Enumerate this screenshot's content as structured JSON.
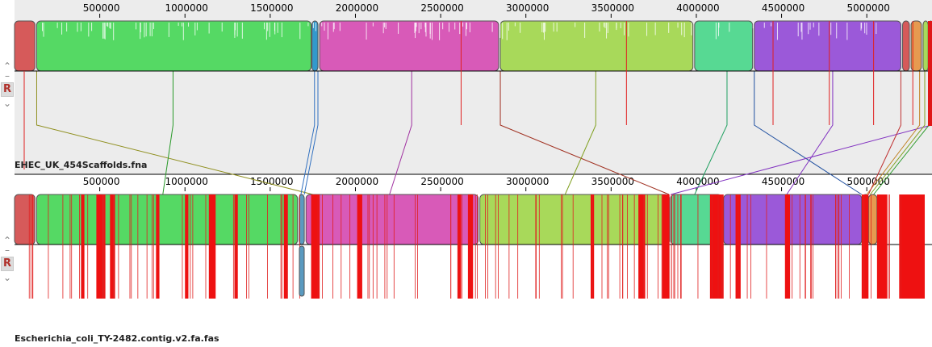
{
  "genome_length": 5400000,
  "genomes": [
    {
      "name": "EHEC_UK_454Scaffolds.fna",
      "tick_labels": [
        "500000",
        "1000000",
        "1500000",
        "2000000",
        "2500000",
        "3000000",
        "3500000",
        "4000000",
        "4500000",
        "5000000"
      ],
      "blocks": [
        {
          "start": 0,
          "end": 120000,
          "color": "#d65a5a"
        },
        {
          "start": 130000,
          "end": 1740000,
          "color": "#55d964"
        },
        {
          "start": 1745000,
          "end": 1780000,
          "color": "#3399cc"
        },
        {
          "start": 1790000,
          "end": 2840000,
          "color": "#d85ab8"
        },
        {
          "start": 2850000,
          "end": 3980000,
          "color": "#a8d95a"
        },
        {
          "start": 3990000,
          "end": 4330000,
          "color": "#57d993"
        },
        {
          "start": 4340000,
          "end": 5200000,
          "color": "#9b59d9"
        },
        {
          "start": 5210000,
          "end": 5250000,
          "color": "#d65a5a"
        },
        {
          "start": 5260000,
          "end": 5320000,
          "color": "#e69a50"
        },
        {
          "start": 5330000,
          "end": 5360000,
          "color": "#a8d95a"
        },
        {
          "start": 5365000,
          "end": 5385000,
          "color": "#55d964"
        }
      ],
      "markers": [
        2620000,
        3590000,
        4450000,
        4780000,
        5040000,
        5270000
      ]
    },
    {
      "name": "Escherichia_coli_TY-2482.contig.v2.fa.fas",
      "tick_labels": [
        "500000",
        "1000000",
        "1500000",
        "2000000",
        "2500000",
        "3000000",
        "3500000",
        "4000000",
        "4500000",
        "5000000"
      ],
      "blocks": [
        {
          "start": 0,
          "end": 120000,
          "color": "#d65a5a"
        },
        {
          "start": 130000,
          "end": 1660000,
          "color": "#55d964"
        },
        {
          "start": 1670000,
          "end": 1700000,
          "color": "#5a9ac0"
        },
        {
          "start": 1710000,
          "end": 2720000,
          "color": "#d85ab8"
        },
        {
          "start": 2730000,
          "end": 3840000,
          "color": "#a8d95a"
        },
        {
          "start": 3850000,
          "end": 4150000,
          "color": "#57d993"
        },
        {
          "start": 4160000,
          "end": 4970000,
          "color": "#9b59d9"
        },
        {
          "start": 4975000,
          "end": 5010000,
          "color": "#d65a5a"
        },
        {
          "start": 5010000,
          "end": 5060000,
          "color": "#e69a50"
        }
      ],
      "red_regions": [
        [
          390000,
          410000
        ],
        [
          480000,
          530000
        ],
        [
          560000,
          590000
        ],
        [
          830000,
          850000
        ],
        [
          1000000,
          1020000
        ],
        [
          1140000,
          1180000
        ],
        [
          1290000,
          1310000
        ],
        [
          1580000,
          1600000
        ],
        [
          1740000,
          1790000
        ],
        [
          2010000,
          2040000
        ],
        [
          2600000,
          2620000
        ],
        [
          2660000,
          2690000
        ],
        [
          3380000,
          3400000
        ],
        [
          3660000,
          3700000
        ],
        [
          3800000,
          3840000
        ],
        [
          4080000,
          4160000
        ],
        [
          4230000,
          4260000
        ],
        [
          4520000,
          4550000
        ],
        [
          4970000,
          5010000
        ],
        [
          5060000,
          5120000
        ],
        [
          5190000,
          5340000
        ]
      ]
    }
  ],
  "connectors": [
    {
      "from": 130000,
      "to": 1750000,
      "color": "#909020"
    },
    {
      "from": 930000,
      "to": 870000,
      "color": "#2a9a2a"
    },
    {
      "from": 1760000,
      "to": 1680000,
      "color": "#3070c0"
    },
    {
      "from": 1780000,
      "to": 1700000,
      "color": "#3070c0"
    },
    {
      "from": 2330000,
      "to": 2200000,
      "color": "#a030a0"
    },
    {
      "from": 2850000,
      "to": 3840000,
      "color": "#a03020"
    },
    {
      "from": 3410000,
      "to": 3230000,
      "color": "#80a020"
    },
    {
      "from": 4180000,
      "to": 3990000,
      "color": "#20a060"
    },
    {
      "from": 4340000,
      "to": 4970000,
      "color": "#2050a0"
    },
    {
      "from": 4800000,
      "to": 4530000,
      "color": "#8030c0"
    },
    {
      "from": 5380000,
      "to": 3850000,
      "color": "#8030c0"
    },
    {
      "from": 5310000,
      "to": 5000000,
      "color": "#c08020"
    },
    {
      "from": 5340000,
      "to": 5020000,
      "color": "#80a020"
    },
    {
      "from": 5365000,
      "to": 5040000,
      "color": "#2a9a2a"
    },
    {
      "from": 5200000,
      "to": 5010000,
      "color": "#c03030"
    }
  ]
}
